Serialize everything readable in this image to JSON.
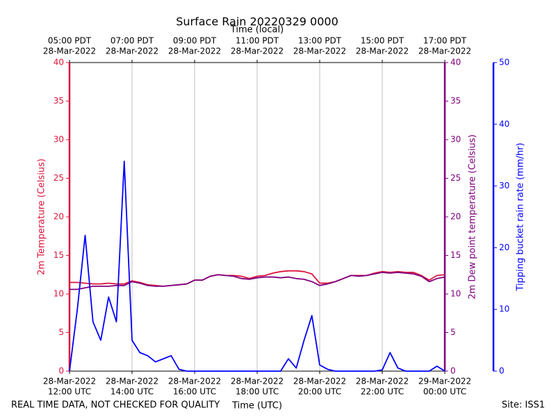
{
  "chart_data": {
    "type": "line",
    "title": "Surface Rain 20220329 0000",
    "xlabel": "Time (UTC)",
    "x2label": "Time (local)",
    "ylabel": "2m Temperature (Celsius)",
    "y2label": "2m Dew point temperature (Celsius)",
    "y3label": "Tipping bucket rain rate (mm/hr)",
    "footer_left": "REAL TIME DATA, NOT CHECKED FOR QUALITY",
    "footer_right": "Site: ISS1",
    "grid": true,
    "xlim": [
      "2022-03-28T12:00",
      "2022-03-29T00:00"
    ],
    "xticks": [
      {
        "value": "2022-03-28T12:00",
        "label": [
          "28-Mar-2022",
          "12:00 UTC"
        ]
      },
      {
        "value": "2022-03-28T14:00",
        "label": [
          "28-Mar-2022",
          "14:00 UTC"
        ]
      },
      {
        "value": "2022-03-28T16:00",
        "label": [
          "28-Mar-2022",
          "16:00 UTC"
        ]
      },
      {
        "value": "2022-03-28T18:00",
        "label": [
          "28-Mar-2022",
          "18:00 UTC"
        ]
      },
      {
        "value": "2022-03-28T20:00",
        "label": [
          "28-Mar-2022",
          "20:00 UTC"
        ]
      },
      {
        "value": "2022-03-28T22:00",
        "label": [
          "28-Mar-2022",
          "22:00 UTC"
        ]
      },
      {
        "value": "2022-03-29T00:00",
        "label": [
          "29-Mar-2022",
          "00:00 UTC"
        ]
      }
    ],
    "x2ticks": [
      {
        "value": "2022-03-28T12:00",
        "label": [
          "05:00 PDT",
          "28-Mar-2022"
        ]
      },
      {
        "value": "2022-03-28T14:00",
        "label": [
          "07:00 PDT",
          "28-Mar-2022"
        ]
      },
      {
        "value": "2022-03-28T16:00",
        "label": [
          "09:00 PDT",
          "28-Mar-2022"
        ]
      },
      {
        "value": "2022-03-28T18:00",
        "label": [
          "11:00 PDT",
          "28-Mar-2022"
        ]
      },
      {
        "value": "2022-03-28T20:00",
        "label": [
          "13:00 PDT",
          "28-Mar-2022"
        ]
      },
      {
        "value": "2022-03-28T22:00",
        "label": [
          "15:00 PDT",
          "28-Mar-2022"
        ]
      },
      {
        "value": "2022-03-29T00:00",
        "label": [
          "17:00 PDT",
          "28-Mar-2022"
        ]
      }
    ],
    "ylim": [
      0,
      40
    ],
    "yticks": [
      0,
      5,
      10,
      15,
      20,
      25,
      30,
      35,
      40
    ],
    "y2lim": [
      0,
      40
    ],
    "y2ticks": [
      0,
      5,
      10,
      15,
      20,
      25,
      30,
      35,
      40
    ],
    "y3lim": [
      0,
      50
    ],
    "y3ticks": [
      0,
      10,
      20,
      30,
      40,
      50
    ],
    "x": [
      "2022-03-28T12:00",
      "2022-03-28T12:15",
      "2022-03-28T12:30",
      "2022-03-28T12:45",
      "2022-03-28T13:00",
      "2022-03-28T13:15",
      "2022-03-28T13:30",
      "2022-03-28T13:45",
      "2022-03-28T14:00",
      "2022-03-28T14:15",
      "2022-03-28T14:30",
      "2022-03-28T14:45",
      "2022-03-28T15:00",
      "2022-03-28T15:15",
      "2022-03-28T15:30",
      "2022-03-28T15:45",
      "2022-03-28T16:00",
      "2022-03-28T16:15",
      "2022-03-28T16:30",
      "2022-03-28T16:45",
      "2022-03-28T17:00",
      "2022-03-28T17:15",
      "2022-03-28T17:30",
      "2022-03-28T17:45",
      "2022-03-28T18:00",
      "2022-03-28T18:15",
      "2022-03-28T18:30",
      "2022-03-28T18:45",
      "2022-03-28T19:00",
      "2022-03-28T19:15",
      "2022-03-28T19:30",
      "2022-03-28T19:45",
      "2022-03-28T20:00",
      "2022-03-28T20:15",
      "2022-03-28T20:30",
      "2022-03-28T20:45",
      "2022-03-28T21:00",
      "2022-03-28T21:15",
      "2022-03-28T21:30",
      "2022-03-28T21:45",
      "2022-03-28T22:00",
      "2022-03-28T22:15",
      "2022-03-28T22:30",
      "2022-03-28T22:45",
      "2022-03-28T23:00",
      "2022-03-28T23:15",
      "2022-03-28T23:30",
      "2022-03-28T23:45",
      "2022-03-29T00:00"
    ],
    "series": [
      {
        "name": "2m Temperature",
        "color": "#dc143c",
        "axis": "y",
        "values": [
          11.5,
          11.5,
          11.4,
          11.3,
          11.3,
          11.4,
          11.3,
          11.3,
          11.7,
          11.5,
          11.2,
          11.1,
          11.0,
          11.1,
          11.2,
          11.3,
          11.8,
          11.8,
          12.3,
          12.5,
          12.4,
          12.4,
          12.3,
          12.0,
          12.3,
          12.4,
          12.7,
          12.9,
          13.0,
          13.0,
          12.9,
          12.6,
          11.4,
          11.4,
          11.6,
          12.0,
          12.4,
          12.4,
          12.4,
          12.7,
          12.9,
          12.8,
          12.9,
          12.8,
          12.8,
          12.4,
          11.8,
          12.4,
          12.5
        ]
      },
      {
        "name": "2m Dew point temperature",
        "color": "#800080",
        "axis": "y2",
        "values": [
          10.6,
          10.6,
          10.8,
          11.0,
          11.0,
          11.0,
          11.1,
          11.1,
          11.6,
          11.4,
          11.1,
          11.0,
          11.0,
          11.1,
          11.2,
          11.3,
          11.8,
          11.8,
          12.3,
          12.5,
          12.4,
          12.3,
          12.0,
          11.9,
          12.1,
          12.2,
          12.2,
          12.1,
          12.2,
          12.0,
          11.9,
          11.6,
          11.1,
          11.3,
          11.6,
          12.0,
          12.4,
          12.3,
          12.4,
          12.6,
          12.8,
          12.7,
          12.8,
          12.7,
          12.6,
          12.3,
          11.6,
          12.0,
          12.2
        ]
      },
      {
        "name": "Tipping bucket rain rate",
        "color": "#0000ff",
        "axis": "y3",
        "values": [
          0,
          10,
          22,
          8,
          5,
          12,
          8,
          34,
          5,
          3,
          2.5,
          1.5,
          2,
          2.5,
          0.3,
          0,
          0,
          0,
          0,
          0,
          0,
          0,
          0,
          0,
          0,
          0,
          0,
          0,
          2,
          0.5,
          5,
          9,
          1,
          0.3,
          0,
          0,
          0,
          0,
          0,
          0,
          0.2,
          3,
          0.5,
          0,
          0,
          0,
          0,
          0.8,
          0
        ]
      }
    ]
  }
}
